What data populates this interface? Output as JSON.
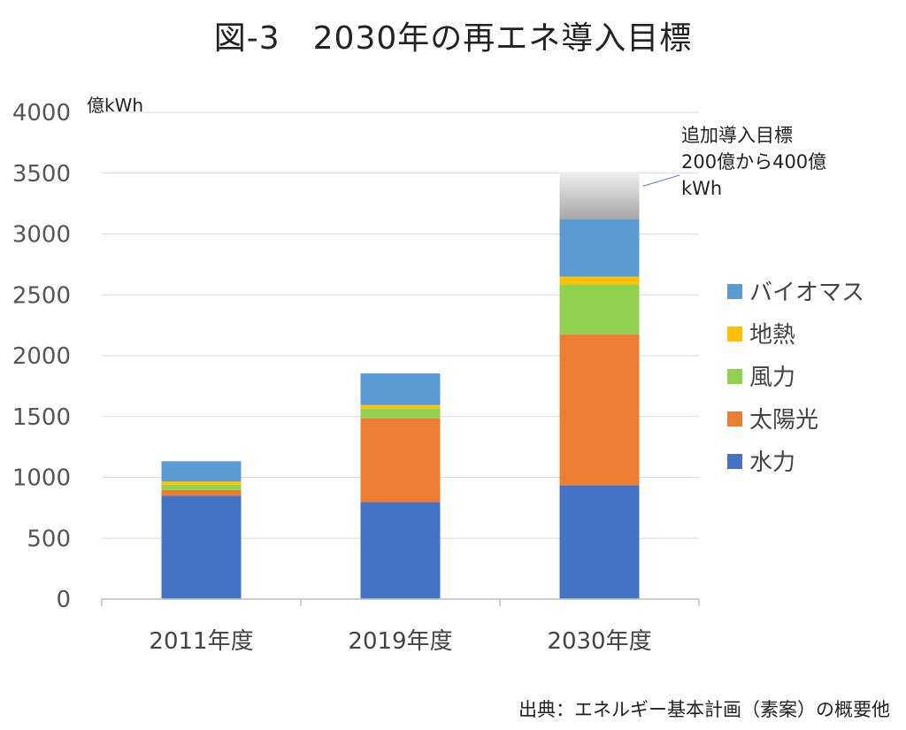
{
  "title": "図-3　2030年の再エネ導入目標",
  "source": "出典：エネルギー基本計画（素案）の概要他",
  "chart_data": {
    "type": "bar",
    "stacked": true,
    "title": "図-3　2030年の再エネ導入目標",
    "ylabel": "億kWh",
    "xlabel": "",
    "ylim": [
      0,
      4000
    ],
    "yticks": [
      0,
      500,
      1000,
      1500,
      2000,
      2500,
      3000,
      3500,
      4000
    ],
    "grid": true,
    "legend_position": "right",
    "categories": [
      "2011年度",
      "2019年度",
      "2030年度"
    ],
    "series": [
      {
        "name": "水力",
        "color": "#4472C4",
        "values": [
          850,
          796,
          936
        ]
      },
      {
        "name": "太陽光",
        "color": "#ED7D31",
        "values": [
          45,
          690,
          1240
        ]
      },
      {
        "name": "風力",
        "color": "#92D050",
        "values": [
          45,
          80,
          410
        ]
      },
      {
        "name": "地熱",
        "color": "#FFC000",
        "values": [
          27,
          28,
          64
        ]
      },
      {
        "name": "バイオマス",
        "color": "#5B9BD5",
        "values": [
          166,
          260,
          470
        ]
      }
    ],
    "additional_target": {
      "category": "2030年度",
      "values": [
        3120,
        3510
      ],
      "annotation": [
        "追加導入目標",
        "200億から400億",
        "kWh"
      ]
    }
  }
}
